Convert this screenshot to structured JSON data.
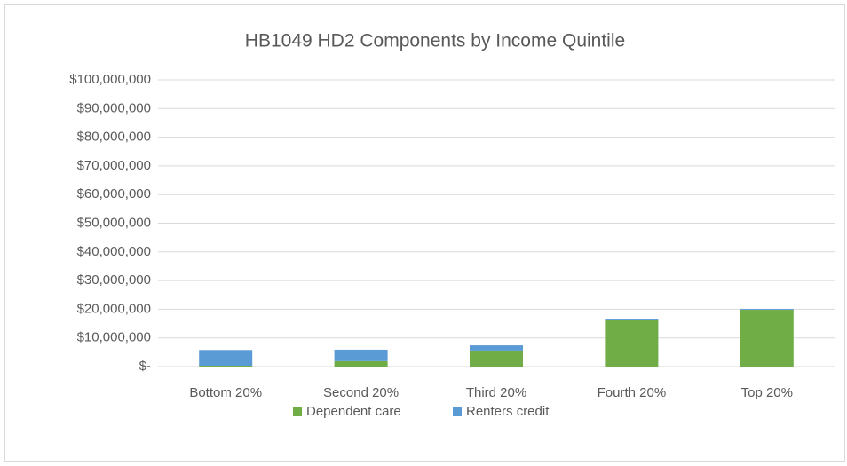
{
  "chart_data": {
    "type": "stacked_bar",
    "title": "HB1049 HD2 Components by Income Quintile",
    "categories": [
      "Bottom 20%",
      "Second 20%",
      "Third 20%",
      "Fourth 20%",
      "Top 20%"
    ],
    "series": [
      {
        "name": "Dependent care",
        "color": "#70ad47",
        "values": [
          300000,
          1900000,
          5600000,
          16100000,
          19800000
        ]
      },
      {
        "name": "Renters credit",
        "color": "#5b9bd5",
        "values": [
          5500000,
          4000000,
          1800000,
          600000,
          300000
        ]
      }
    ],
    "ylim": [
      0,
      100000000
    ],
    "yticks": [
      {
        "value": 0,
        "label": "$-"
      },
      {
        "value": 10000000,
        "label": "$10,000,000"
      },
      {
        "value": 20000000,
        "label": "$20,000,000"
      },
      {
        "value": 30000000,
        "label": "$30,000,000"
      },
      {
        "value": 40000000,
        "label": "$40,000,000"
      },
      {
        "value": 50000000,
        "label": "$50,000,000"
      },
      {
        "value": 60000000,
        "label": "$60,000,000"
      },
      {
        "value": 70000000,
        "label": "$70,000,000"
      },
      {
        "value": 80000000,
        "label": "$80,000,000"
      },
      {
        "value": 90000000,
        "label": "$90,000,000"
      },
      {
        "value": 100000000,
        "label": "$100,000,000"
      }
    ],
    "grid": true,
    "legend": "bottom"
  }
}
